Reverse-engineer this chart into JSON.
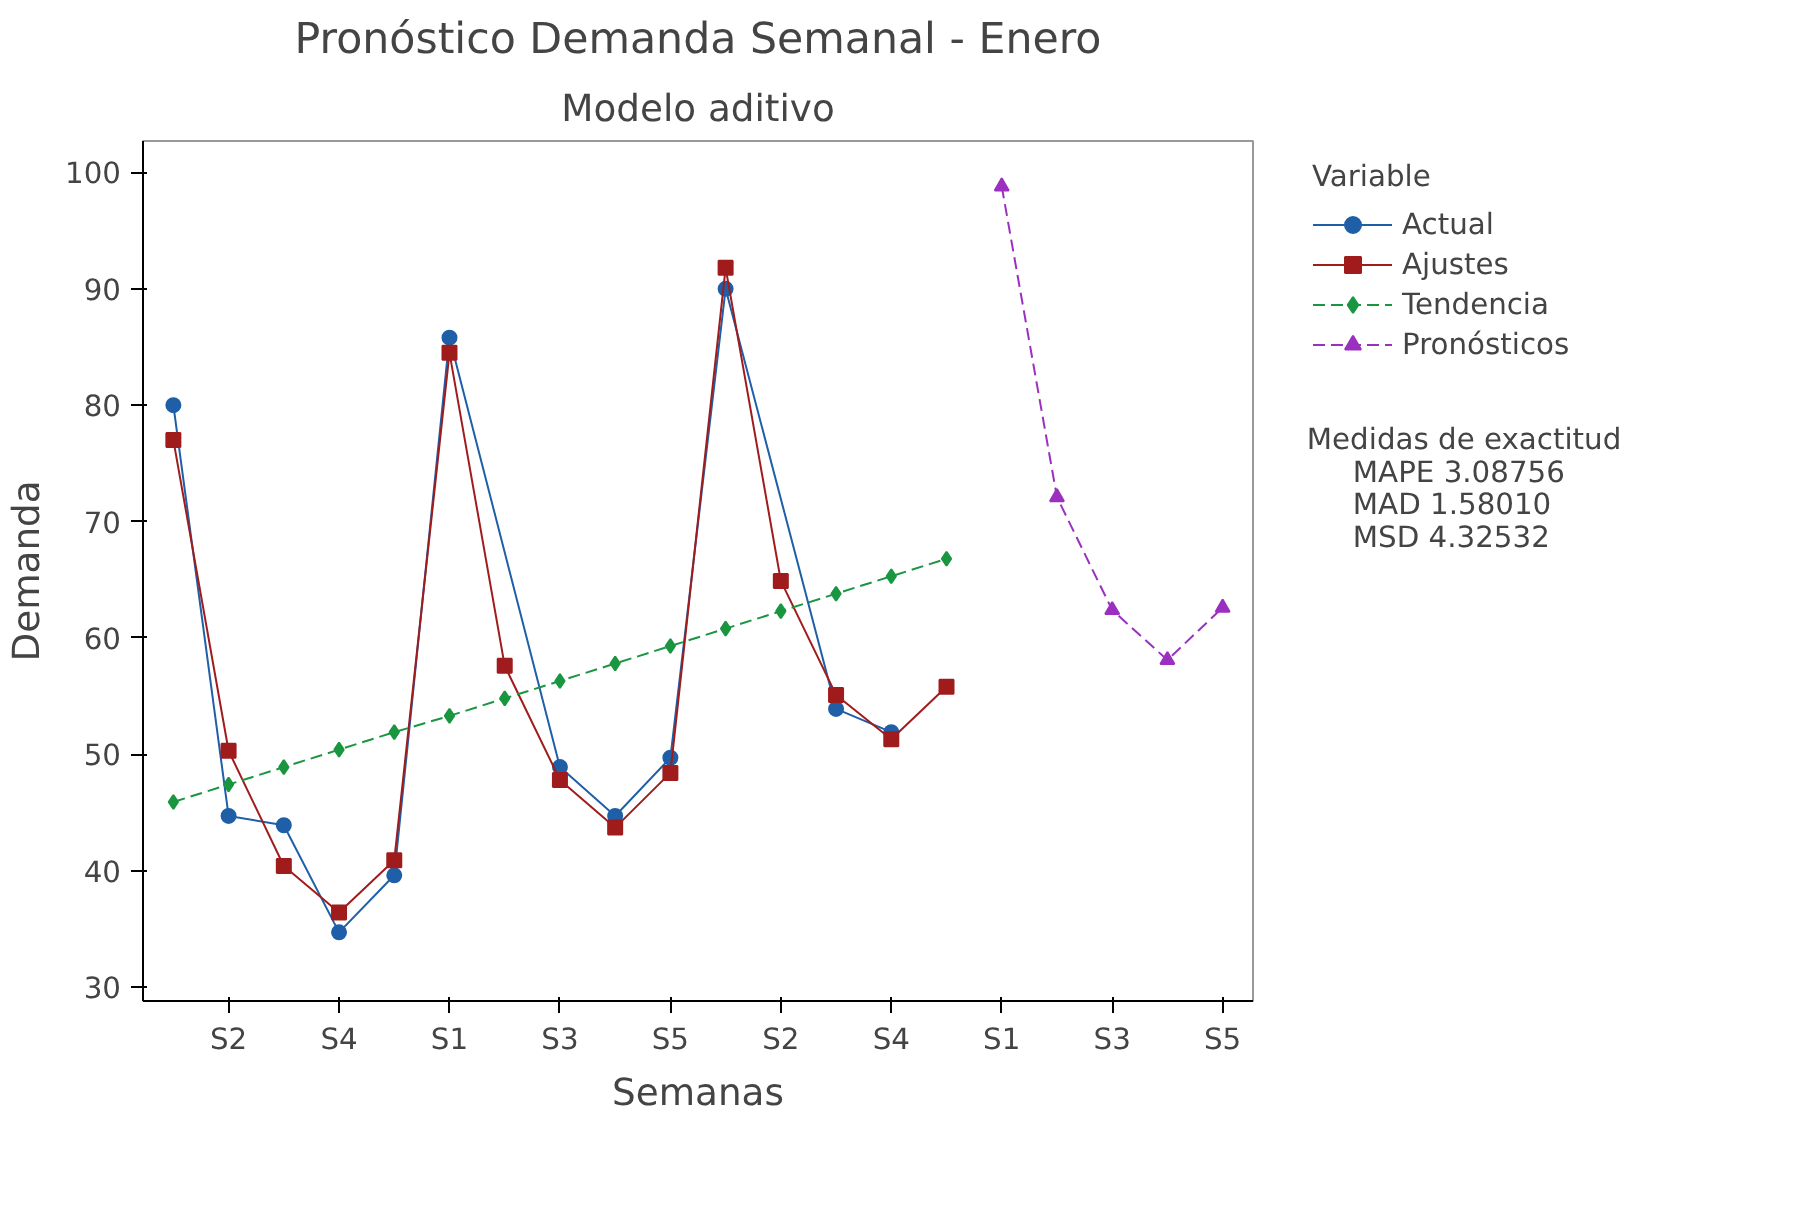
{
  "chart_data": {
    "type": "line",
    "title": "Pronóstico Demanda Semanal - Enero",
    "subtitle": "Modelo aditivo",
    "xlabel": "Semanas",
    "ylabel": "Demanda",
    "legend_title": "Variable",
    "categories": [
      null,
      "S2",
      null,
      "S4",
      null,
      "S1",
      null,
      "S3",
      null,
      "S5",
      null,
      "S2",
      null,
      "S4",
      null,
      "S1",
      null,
      "S3",
      null,
      "S5"
    ],
    "series": [
      {
        "name": "Actual",
        "color": "#1f5fa8",
        "marker": "circle",
        "line_style": "solid",
        "values": [
          80,
          44.7,
          43.9,
          34.7,
          39.6,
          85.8,
          null,
          48.9,
          44.7,
          49.7,
          90,
          null,
          53.9,
          51.9,
          null,
          null,
          null,
          null,
          null,
          null
        ]
      },
      {
        "name": "Ajustes",
        "color": "#a01c1c",
        "marker": "square",
        "line_style": "solid",
        "values": [
          77,
          50.3,
          40.4,
          36.4,
          40.9,
          84.5,
          57.6,
          47.8,
          43.7,
          48.4,
          91.8,
          64.9,
          55.1,
          51.3,
          55.8,
          null,
          null,
          null,
          null,
          null
        ]
      },
      {
        "name": "Tendencia",
        "color": "#1a9641",
        "marker": "diamond",
        "line_style": "dashed",
        "values": [
          45.9,
          47.4,
          48.9,
          50.4,
          51.9,
          53.3,
          54.8,
          56.3,
          57.8,
          59.3,
          60.8,
          62.3,
          63.8,
          65.3,
          66.8,
          null,
          null,
          null,
          null,
          null
        ]
      },
      {
        "name": "Pronósticos",
        "color": "#9b30c0",
        "marker": "triangle",
        "line_style": "dashed",
        "values": [
          null,
          null,
          null,
          null,
          null,
          null,
          null,
          null,
          null,
          null,
          null,
          null,
          null,
          null,
          null,
          98.8,
          72.1,
          62.4,
          58.1,
          62.6
        ]
      }
    ],
    "ylim": [
      28.8,
      102.7
    ],
    "yticks": [
      30,
      40,
      50,
      60,
      70,
      80,
      90,
      100
    ],
    "grid": false,
    "legend": "right",
    "annotations": [
      "Medidas de exactitud",
      "MAPE      3.08756",
      "MAD        1.58010",
      "MSD        4.32532"
    ]
  }
}
